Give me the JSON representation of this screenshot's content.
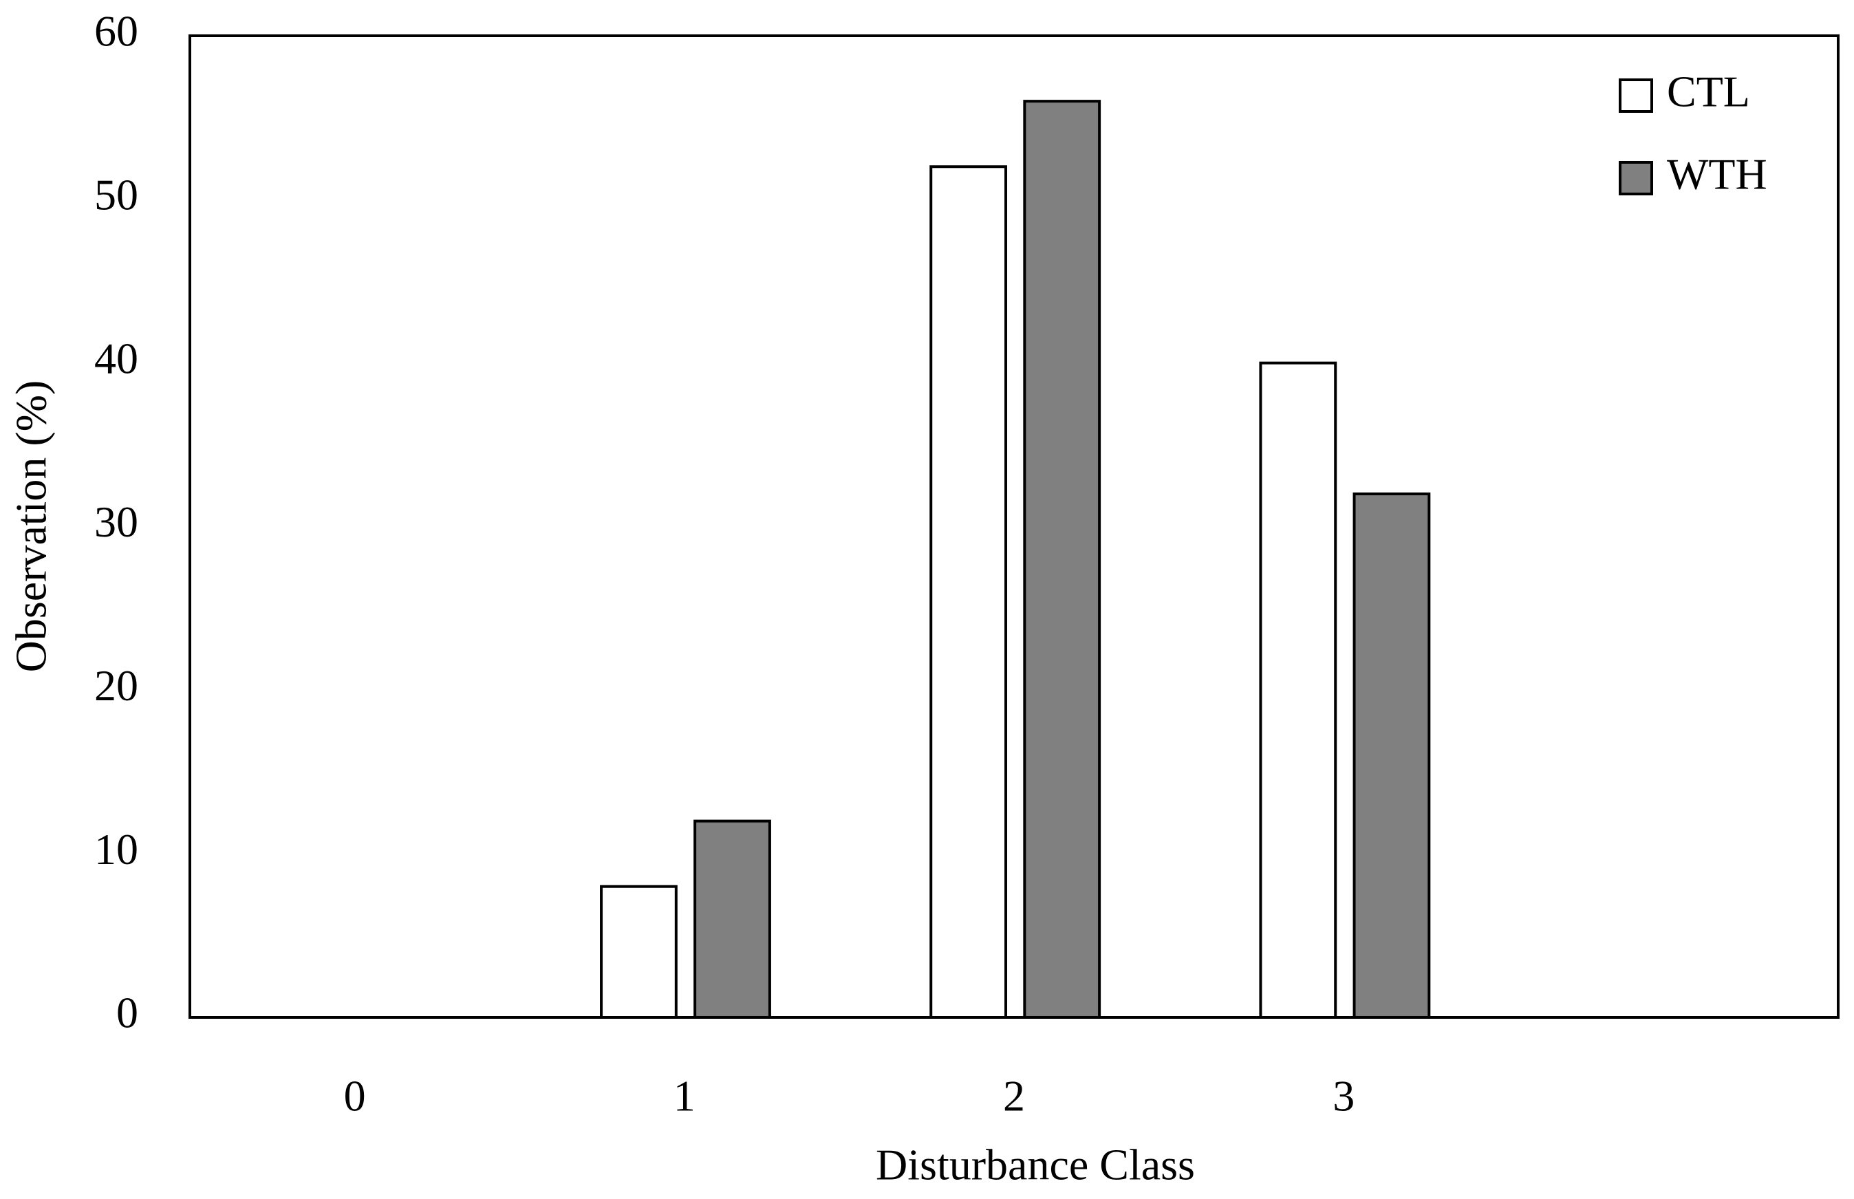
{
  "chart_data": {
    "type": "bar",
    "x_label": "Disturbance Class",
    "y_label": "Observation (%)",
    "categories": [
      "0",
      "1",
      "2",
      "3",
      null
    ],
    "series": [
      {
        "name": "CTL",
        "color": "#ffffff",
        "values": [
          0,
          8,
          52,
          40,
          null
        ]
      },
      {
        "name": "WTH",
        "color": "#808080",
        "values": [
          0,
          12,
          56,
          32,
          null
        ]
      }
    ],
    "ylim": [
      0,
      60
    ],
    "yticks": [
      0,
      10,
      20,
      30,
      40,
      50,
      60
    ],
    "grid": false,
    "legend": "upper right"
  }
}
